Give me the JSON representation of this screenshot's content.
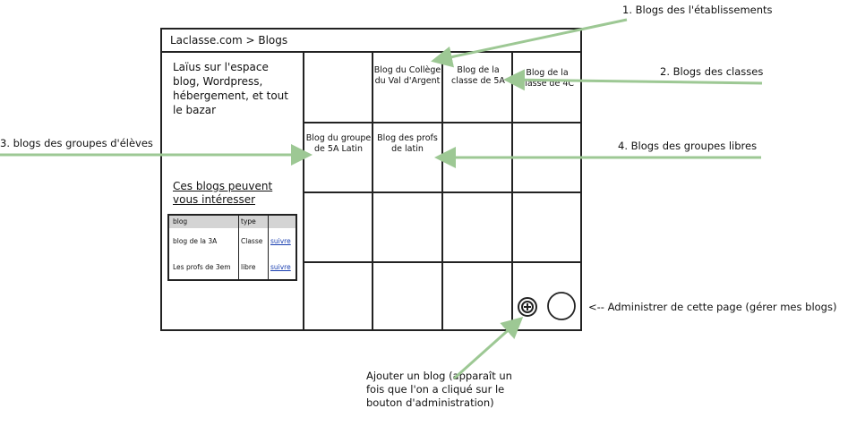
{
  "window": {
    "breadcrumb": "Laclasse.com > Blogs"
  },
  "sidebar": {
    "intro": "Laïus sur l'espace blog, Wordpress, hébergement, et tout le bazar",
    "suggestions_title": "Ces blogs peuvent vous intéresser",
    "table": {
      "headers": [
        "blog",
        "type",
        ""
      ],
      "rows": [
        {
          "blog": "blog de la 3A",
          "type": "Classe",
          "action": "suivre"
        },
        {
          "blog": "Les profs de 3em",
          "type": "libre",
          "action": "suivre"
        }
      ]
    }
  },
  "tiles": {
    "college": "Blog du Collège du Val d'Argent",
    "classe_5a": "Blog de la classe de 5A",
    "classe_4c": "Blog de la classe de 4C",
    "groupe_latin": "Blog du groupe de 5A Latin",
    "profs_latin": "Blog des profs de latin"
  },
  "annotations": {
    "a1": "1. Blogs des l'établissements",
    "a2": "2. Blogs des classes",
    "a3": "3. blogs des groupes d'élèves",
    "a4": "4. Blogs des groupes libres",
    "admin": "<-- Administrer de cette page (gérer mes blogs)",
    "add_blog": "Ajouter un blog (apparaît un fois que l'on a cliqué sur le bouton d'administration)"
  },
  "icons": {
    "add": "plus-circle-icon",
    "admin": "circle-icon"
  },
  "colors": {
    "arrow": "#9dc894",
    "border": "#222222",
    "link": "#1a3fb0"
  }
}
